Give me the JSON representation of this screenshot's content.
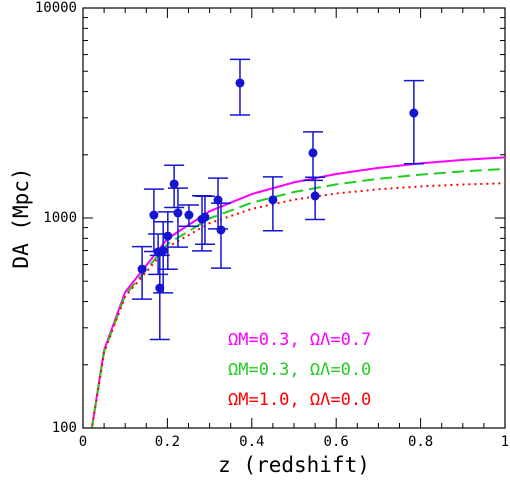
{
  "chart_data": {
    "type": "scatter",
    "xlabel": "z (redshift)",
    "ylabel": "DA (Mpc)",
    "xlim": [
      0,
      1
    ],
    "xticks": [
      0,
      0.2,
      0.4,
      0.6,
      0.8,
      1
    ],
    "xminorticks": [
      0.05,
      0.1,
      0.15,
      0.25,
      0.3,
      0.35,
      0.45,
      0.5,
      0.55,
      0.65,
      0.7,
      0.75,
      0.85,
      0.9,
      0.95
    ],
    "ylim": [
      100,
      10000
    ],
    "yticks": [
      100,
      1000,
      10000
    ],
    "yminorticks": [
      200,
      300,
      400,
      500,
      600,
      700,
      800,
      900,
      2000,
      3000,
      4000,
      5000,
      6000,
      7000,
      8000,
      9000
    ],
    "ylog": true,
    "points": {
      "color": "#1414d2",
      "x": [
        0.14,
        0.168,
        0.178,
        0.182,
        0.19,
        0.201,
        0.216,
        0.225,
        0.251,
        0.282,
        0.289,
        0.32,
        0.327,
        0.372,
        0.45,
        0.545,
        0.55,
        0.784
      ],
      "values": [
        571,
        1033,
        689,
        464,
        700,
        820,
        1452,
        1057,
        1033,
        987,
        1010,
        1218,
        877,
        4395,
        1220,
        2041,
        1274,
        3162
      ],
      "errors": [
        160,
        340,
        150,
        200,
        260,
        250,
        330,
        330,
        120,
        290,
        260,
        330,
        300,
        1300,
        350,
        530,
        290,
        1350
      ]
    },
    "curve_x": [
      0.02,
      0.05,
      0.1,
      0.2,
      0.3,
      0.4,
      0.5,
      0.6,
      0.7,
      0.8,
      0.9,
      1
    ],
    "series": [
      {
        "name": "ΩM=0.3,  ΩΛ=0.7",
        "color": "#ff00ff",
        "style": "solid",
        "values": [
          97.5,
          235,
          444,
          796,
          1076,
          1300,
          1478,
          1620,
          1733,
          1821,
          1891,
          1944
        ]
      },
      {
        "name": "ΩM=0.3,  ΩΛ=0.0",
        "color": "#22cc22",
        "style": "dashed",
        "values": [
          96.9,
          231,
          430,
          751,
          995,
          1183,
          1330,
          1446,
          1537,
          1609,
          1667,
          1713
        ]
      },
      {
        "name": "ΩM=1.0,  ΩΛ=0.0",
        "color": "#ff0000",
        "style": "dotted",
        "values": [
          96.5,
          229,
          423,
          726,
          945,
          1105,
          1223,
          1308,
          1370,
          1414,
          1444,
          1464
        ]
      }
    ]
  }
}
